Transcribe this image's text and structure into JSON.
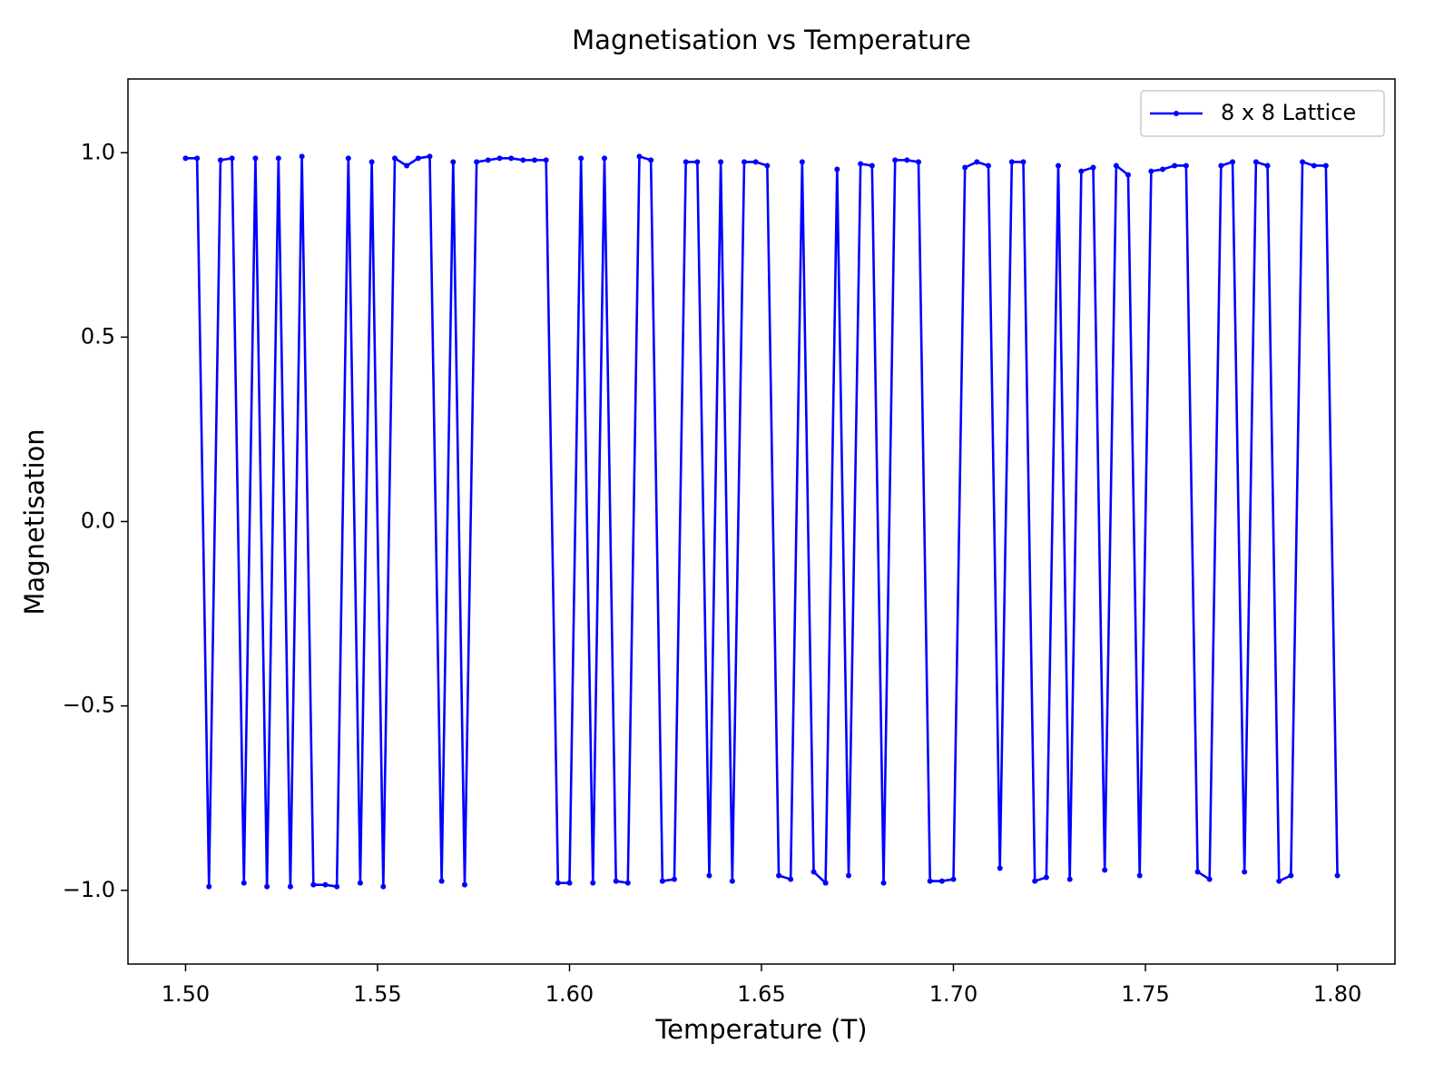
{
  "chart_data": {
    "type": "line",
    "title": "Magnetisation vs Temperature",
    "x_label": "Temperature (T)",
    "y_label": "Magnetisation",
    "x": [
      1.5,
      1.503,
      1.5061,
      1.5091,
      1.5121,
      1.5152,
      1.5182,
      1.5212,
      1.5242,
      1.5273,
      1.5303,
      1.5333,
      1.5364,
      1.5394,
      1.5424,
      1.5455,
      1.5485,
      1.5515,
      1.5545,
      1.5576,
      1.5606,
      1.5636,
      1.5667,
      1.5697,
      1.5727,
      1.5758,
      1.5788,
      1.5818,
      1.5848,
      1.5879,
      1.5909,
      1.5939,
      1.597,
      1.6,
      1.603,
      1.6061,
      1.6091,
      1.6121,
      1.6152,
      1.6182,
      1.6212,
      1.6242,
      1.6273,
      1.6303,
      1.6333,
      1.6364,
      1.6394,
      1.6424,
      1.6455,
      1.6485,
      1.6515,
      1.6545,
      1.6576,
      1.6606,
      1.6636,
      1.6667,
      1.6697,
      1.6727,
      1.6758,
      1.6788,
      1.6818,
      1.6848,
      1.6879,
      1.6909,
      1.6939,
      1.697,
      1.7,
      1.703,
      1.7061,
      1.7091,
      1.7121,
      1.7152,
      1.7182,
      1.7212,
      1.7242,
      1.7273,
      1.7303,
      1.7333,
      1.7364,
      1.7394,
      1.7424,
      1.7455,
      1.7485,
      1.7515,
      1.7545,
      1.7576,
      1.7606,
      1.7636,
      1.7667,
      1.7697,
      1.7727,
      1.7758,
      1.7788,
      1.7818,
      1.7848,
      1.7879,
      1.7909,
      1.7939,
      1.797,
      1.8
    ],
    "series": [
      {
        "name": "8 x 8 Lattice",
        "color": "#0000ff",
        "values": [
          0.985,
          0.985,
          -0.99,
          0.98,
          0.985,
          -0.98,
          0.985,
          -0.99,
          0.985,
          -0.99,
          0.99,
          -0.985,
          -0.985,
          -0.99,
          0.985,
          -0.98,
          0.975,
          -0.99,
          0.985,
          0.965,
          0.985,
          0.99,
          -0.975,
          0.975,
          -0.985,
          0.975,
          0.98,
          0.985,
          0.985,
          0.98,
          0.98,
          0.98,
          -0.98,
          -0.98,
          0.985,
          -0.98,
          0.985,
          -0.975,
          -0.98,
          0.99,
          0.98,
          -0.975,
          -0.97,
          0.975,
          0.975,
          -0.96,
          0.975,
          -0.975,
          0.975,
          0.975,
          0.965,
          -0.96,
          -0.97,
          0.975,
          -0.95,
          -0.98,
          0.955,
          -0.96,
          0.97,
          0.965,
          -0.98,
          0.98,
          0.98,
          0.975,
          -0.975,
          -0.975,
          -0.97,
          0.96,
          0.975,
          0.965,
          -0.94,
          0.975,
          0.975,
          -0.975,
          -0.965,
          0.965,
          -0.97,
          0.95,
          0.96,
          -0.945,
          0.965,
          0.94,
          -0.96,
          0.95,
          0.955,
          0.965,
          0.965,
          -0.95,
          -0.97,
          0.965,
          0.975,
          -0.95,
          0.975,
          0.965,
          -0.975,
          -0.96,
          0.975,
          0.965,
          0.965,
          -0.96
        ]
      }
    ],
    "xlim": [
      1.485,
      1.815
    ],
    "ylim": [
      -1.2,
      1.2
    ],
    "xticks": [
      {
        "value": 1.5,
        "label": "1.50"
      },
      {
        "value": 1.55,
        "label": "1.55"
      },
      {
        "value": 1.6,
        "label": "1.60"
      },
      {
        "value": 1.65,
        "label": "1.65"
      },
      {
        "value": 1.7,
        "label": "1.70"
      },
      {
        "value": 1.75,
        "label": "1.75"
      },
      {
        "value": 1.8,
        "label": "1.80"
      }
    ],
    "yticks": [
      {
        "value": -1,
        "label": "−1.0"
      },
      {
        "value": -0.5,
        "label": "−0.5"
      },
      {
        "value": 0,
        "label": "0.0"
      },
      {
        "value": 0.5,
        "label": "0.5"
      },
      {
        "value": 1,
        "label": "1.0"
      }
    ],
    "grid": false,
    "legend": "upper right"
  }
}
